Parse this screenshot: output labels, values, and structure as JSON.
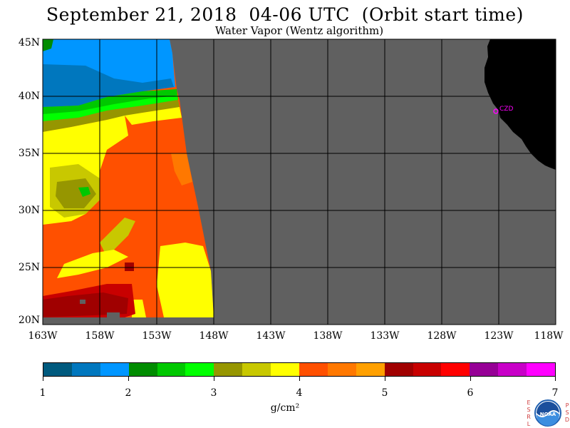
{
  "title": "September 21, 2018  04-06 UTC  (Orbit start time)",
  "subtitle": "Water Vapor (Wentz algorithm)",
  "lat_labels": [
    "45N",
    "40N",
    "35N",
    "30N",
    "25N",
    "20N"
  ],
  "lon_labels": [
    "163W",
    "158W",
    "153W",
    "148W",
    "143W",
    "138W",
    "133W",
    "128W",
    "123W",
    "118W"
  ],
  "station_label": "CZD",
  "colorbar": {
    "colors": [
      "#005a7e",
      "#0077be",
      "#0096ff",
      "#008c00",
      "#00c800",
      "#00ff00",
      "#969600",
      "#c8c800",
      "#ffff00",
      "#ff5000",
      "#ff7800",
      "#ffa000",
      "#a00000",
      "#c80000",
      "#ff0000",
      "#960096",
      "#c800c8",
      "#ff00ff"
    ],
    "ticks": [
      "1",
      "2",
      "3",
      "4",
      "5",
      "6",
      "7"
    ],
    "units": "g/cm²"
  },
  "colors": {
    "no_data": "#606060",
    "land": "#000000",
    "station": "#ff00ff"
  },
  "logo": {
    "left_letters": [
      "E",
      "S",
      "R",
      "L"
    ],
    "right_letters": [
      "P",
      "S",
      "D"
    ],
    "text": "NOAA"
  }
}
